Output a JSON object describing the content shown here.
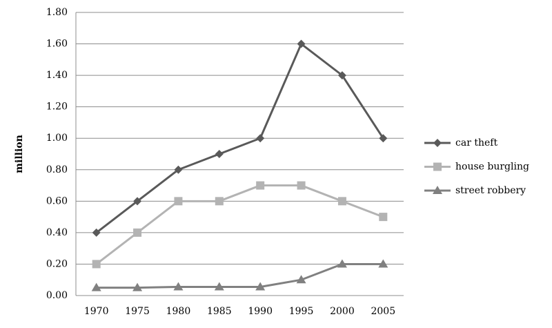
{
  "chart_data": {
    "type": "line",
    "y_label": "million",
    "x": [
      1970,
      1975,
      1980,
      1985,
      1990,
      1995,
      2000,
      2005
    ],
    "xlim": [
      1967.5,
      2007.5
    ],
    "ylim": [
      0,
      1.8
    ],
    "yticks": [
      {
        "value": 0,
        "label": "0.00"
      },
      {
        "value": 0.2,
        "label": "0.20"
      },
      {
        "value": 0.4,
        "label": "0.40"
      },
      {
        "value": 0.6,
        "label": "0.60"
      },
      {
        "value": 0.8,
        "label": "0.80"
      },
      {
        "value": 1,
        "label": "1.00"
      },
      {
        "value": 1.2,
        "label": "1.20"
      },
      {
        "value": 1.4,
        "label": "1.40"
      },
      {
        "value": 1.6,
        "label": "1.60"
      },
      {
        "value": 1.8,
        "label": "1.80"
      }
    ],
    "grid": true,
    "legend": "right",
    "series": [
      {
        "name": "car theft",
        "color": "#595959",
        "marker": "diamond",
        "values": [
          0.4,
          0.6,
          0.8,
          0.9,
          1.0,
          1.6,
          1.4,
          1.0
        ]
      },
      {
        "name": "house burgling",
        "color": "#b3b3b3",
        "marker": "square",
        "values": [
          0.2,
          0.4,
          0.6,
          0.6,
          0.7,
          0.7,
          0.6,
          0.5
        ]
      },
      {
        "name": "street robbery",
        "color": "#808080",
        "marker": "triangle",
        "values": [
          0.05,
          0.05,
          0.055,
          0.055,
          0.055,
          0.1,
          0.2,
          0.2
        ]
      }
    ]
  }
}
